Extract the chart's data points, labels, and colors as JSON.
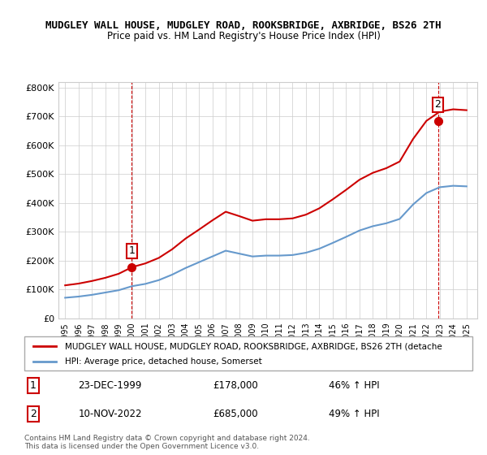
{
  "title": "MUDGLEY WALL HOUSE, MUDGLEY ROAD, ROOKSBRIDGE, AXBRIDGE, BS26 2TH",
  "subtitle": "Price paid vs. HM Land Registry's House Price Index (HPI)",
  "sale1_date": "23-DEC-1999",
  "sale1_price": 178000,
  "sale1_label": "1",
  "sale1_hpi": "46% ↑ HPI",
  "sale2_date": "10-NOV-2022",
  "sale2_price": 685000,
  "sale2_label": "2",
  "sale2_hpi": "49% ↑ HPI",
  "legend_line1": "MUDGLEY WALL HOUSE, MUDGLEY ROAD, ROOKSBRIDGE, AXBRIDGE, BS26 2TH (detache",
  "legend_line2": "HPI: Average price, detached house, Somerset",
  "footer": "Contains HM Land Registry data © Crown copyright and database right 2024.\nThis data is licensed under the Open Government Licence v3.0.",
  "red_color": "#cc0000",
  "blue_color": "#6699cc",
  "vline_color": "#cc0000",
  "background_color": "#ffffff",
  "grid_color": "#cccccc",
  "ylim": [
    0,
    820000
  ],
  "yticks": [
    0,
    100000,
    200000,
    300000,
    400000,
    500000,
    600000,
    700000,
    800000
  ],
  "years": [
    1995,
    1996,
    1997,
    1998,
    1999,
    2000,
    2001,
    2002,
    2003,
    2004,
    2005,
    2006,
    2007,
    2008,
    2009,
    2010,
    2011,
    2012,
    2013,
    2014,
    2015,
    2016,
    2017,
    2018,
    2019,
    2020,
    2021,
    2022,
    2023,
    2024,
    2025
  ],
  "hpi_values": [
    72000,
    76000,
    82000,
    90000,
    98000,
    112000,
    120000,
    133000,
    152000,
    175000,
    195000,
    215000,
    235000,
    225000,
    215000,
    218000,
    218000,
    220000,
    228000,
    242000,
    262000,
    283000,
    305000,
    320000,
    330000,
    345000,
    395000,
    435000,
    455000,
    460000,
    458000
  ],
  "red_line_years": [
    1995,
    1996,
    1997,
    1998,
    1999,
    2000,
    2001,
    2002,
    2003,
    2004,
    2005,
    2006,
    2007,
    2008,
    2009,
    2010,
    2011,
    2012,
    2013,
    2014,
    2015,
    2016,
    2017,
    2018,
    2019,
    2020,
    2021,
    2022,
    2023,
    2024,
    2025
  ],
  "red_line_values": [
    115000,
    121000,
    130000,
    141000,
    155000,
    178000,
    191000,
    210000,
    240000,
    277000,
    308000,
    340000,
    370000,
    355000,
    339000,
    344000,
    344000,
    347000,
    360000,
    382000,
    413000,
    446000,
    481000,
    505000,
    521000,
    544000,
    622000,
    685000,
    717000,
    725000,
    722000
  ],
  "sale1_x": 1999.97,
  "sale2_x": 2022.86
}
